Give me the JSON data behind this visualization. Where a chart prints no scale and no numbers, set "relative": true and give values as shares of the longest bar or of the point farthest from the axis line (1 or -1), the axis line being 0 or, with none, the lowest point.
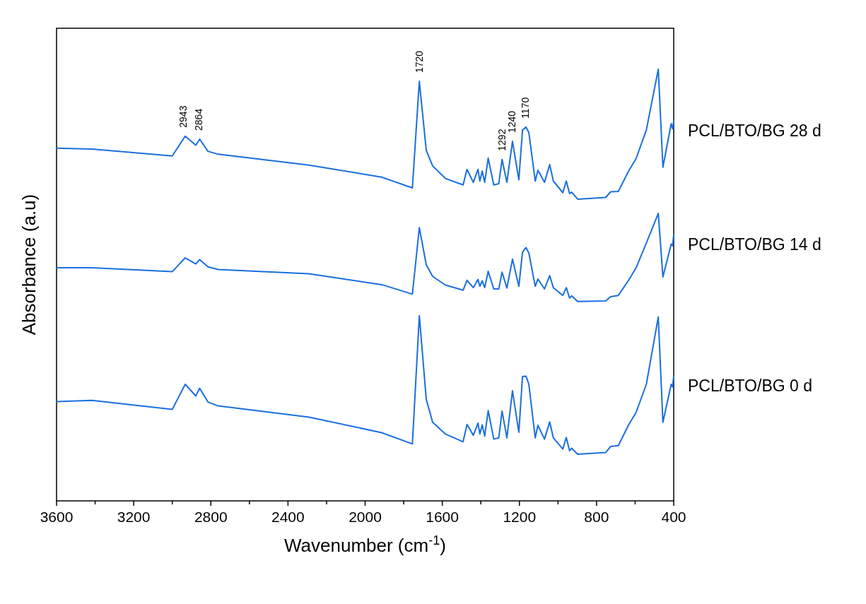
{
  "chart_data": {
    "type": "line",
    "relative": true,
    "xlabel": "Wavenumber (cm$^{-1}$)",
    "ylabel": "Absorbance (a.u)",
    "grid": false,
    "marker": "none",
    "line_style": "solid",
    "tick_labels": "x",
    "xlim": [
      3600,
      400
    ],
    "xticks": [
      3600,
      {
        "value": 3400,
        "label": null
      },
      3200,
      {
        "value": 3000,
        "label": null
      },
      2800,
      {
        "value": 2600,
        "label": null
      },
      2400,
      {
        "value": 2200,
        "label": null
      },
      2000,
      {
        "value": 1800,
        "label": null
      },
      1600,
      {
        "value": 1400,
        "label": null
      },
      1200,
      {
        "value": 1000,
        "label": null
      },
      800,
      {
        "value": 600,
        "label": null
      },
      400
    ],
    "x": [
      3600,
      3417,
      3000,
      2933,
      2878,
      2858,
      2815,
      2762,
      2291,
      1914,
      1755,
      1719,
      1683,
      1650,
      1584,
      1492,
      1472,
      1439,
      1415,
      1405,
      1393,
      1380,
      1362,
      1333,
      1307,
      1290,
      1265,
      1236,
      1203,
      1184,
      1166,
      1151,
      1118,
      1104,
      1070,
      1043,
      1024,
      975,
      957,
      940,
      929,
      898,
      753,
      727,
      687,
      634,
      595,
      542,
      480,
      456,
      413,
      406,
      400
    ],
    "series": [
      {
        "name": "PCL/BTO/BG 28 d",
        "color": "#1a6fdf",
        "values": [
          0.817,
          0.815,
          0.799,
          0.845,
          0.824,
          0.838,
          0.81,
          0.803,
          0.778,
          0.75,
          0.725,
          0.972,
          0.812,
          0.776,
          0.747,
          0.732,
          0.768,
          0.738,
          0.768,
          0.741,
          0.764,
          0.738,
          0.794,
          0.732,
          0.735,
          0.791,
          0.738,
          0.833,
          0.744,
          0.859,
          0.866,
          0.853,
          0.741,
          0.766,
          0.738,
          0.779,
          0.741,
          0.714,
          0.741,
          0.712,
          0.715,
          0.699,
          0.703,
          0.716,
          0.717,
          0.764,
          0.793,
          0.859,
          1.0,
          0.773,
          0.874,
          0.862,
          0.88
        ]
      },
      {
        "name": "PCL/BTO/BG 14 d",
        "color": "#1a6fdf",
        "values": [
          0.54,
          0.54,
          0.531,
          0.563,
          0.549,
          0.559,
          0.542,
          0.536,
          0.526,
          0.501,
          0.479,
          0.633,
          0.547,
          0.52,
          0.5,
          0.488,
          0.511,
          0.494,
          0.513,
          0.497,
          0.51,
          0.494,
          0.532,
          0.491,
          0.491,
          0.53,
          0.493,
          0.56,
          0.497,
          0.576,
          0.587,
          0.574,
          0.497,
          0.514,
          0.491,
          0.522,
          0.494,
          0.476,
          0.494,
          0.47,
          0.475,
          0.462,
          0.463,
          0.473,
          0.476,
          0.511,
          0.54,
          0.597,
          0.666,
          0.519,
          0.595,
          0.591,
          0.617
        ]
      },
      {
        "name": "PCL/BTO/BG 0 d",
        "color": "#1a6fdf",
        "values": [
          0.23,
          0.233,
          0.212,
          0.27,
          0.243,
          0.261,
          0.229,
          0.22,
          0.194,
          0.158,
          0.132,
          0.429,
          0.235,
          0.182,
          0.155,
          0.137,
          0.177,
          0.152,
          0.18,
          0.155,
          0.176,
          0.15,
          0.209,
          0.143,
          0.146,
          0.208,
          0.146,
          0.255,
          0.159,
          0.288,
          0.289,
          0.27,
          0.146,
          0.175,
          0.143,
          0.183,
          0.146,
          0.12,
          0.147,
          0.116,
          0.122,
          0.108,
          0.112,
          0.126,
          0.128,
          0.176,
          0.205,
          0.27,
          0.426,
          0.182,
          0.27,
          0.264,
          0.289
        ]
      }
    ],
    "annotations": [
      {
        "text": "2943",
        "x": 2943,
        "y": 0.845
      },
      {
        "text": "2864",
        "x": 2864,
        "y": 0.838
      },
      {
        "text": "1720",
        "x": 1720,
        "y": 0.972
      },
      {
        "text": "1292",
        "x": 1292,
        "y": 0.791
      },
      {
        "text": "1240",
        "x": 1240,
        "y": 0.833
      },
      {
        "text": "1170",
        "x": 1170,
        "y": 0.866
      }
    ]
  }
}
